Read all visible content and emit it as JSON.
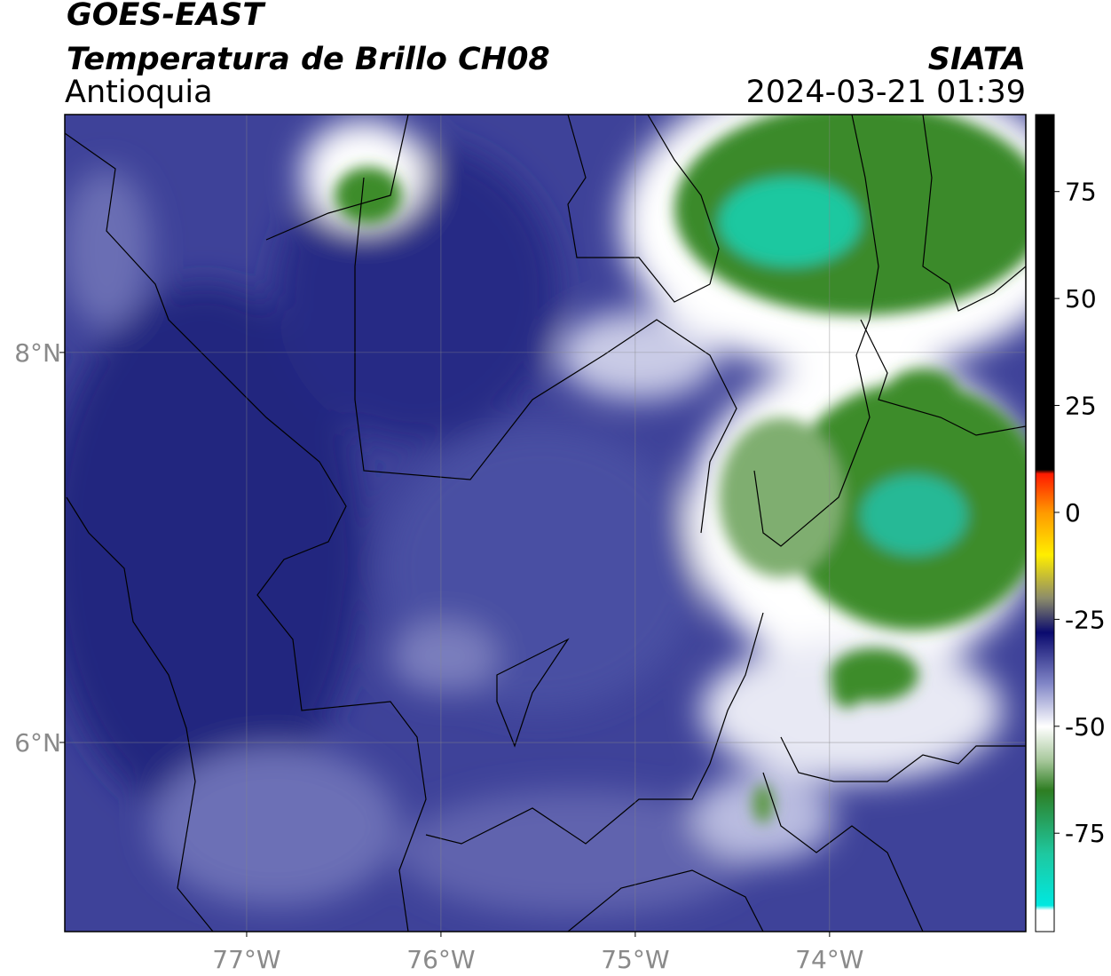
{
  "map": {
    "title": "GOES-EAST",
    "subtitle": "Temperatura de Brillo CH08",
    "region": "Antioquia",
    "source": "SIATA",
    "timestamp": "2024-03-21 01:39",
    "xlim": [
      -77.936,
      -72.99
    ],
    "ylim": [
      5.03,
      9.22
    ],
    "lon_ticks": [
      {
        "value": -77,
        "label": "77°W"
      },
      {
        "value": -76,
        "label": "76°W"
      },
      {
        "value": -75,
        "label": "75°W"
      },
      {
        "value": -74,
        "label": "74°W"
      }
    ],
    "lat_ticks": [
      {
        "value": 8,
        "label": "8°N"
      },
      {
        "value": 6,
        "label": "6°N"
      }
    ],
    "grid": true,
    "colorbar": {
      "range": [
        -98,
        93
      ],
      "ticks": [
        75,
        50,
        25,
        0,
        -25,
        -50,
        -75
      ]
    }
  }
}
